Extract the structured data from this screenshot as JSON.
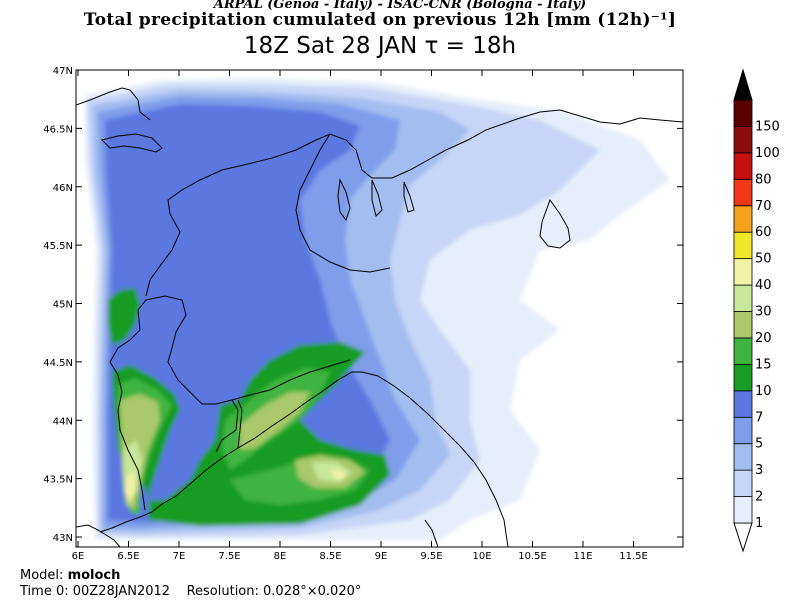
{
  "header": {
    "line1": "ARPAL (Genoa - Italy)   -   ISAC-CNR (Bologna - Italy)",
    "line2": "Total precipitation cumulated on previous 12h [mm (12h)⁻¹]",
    "line3": "18Z Sat 28 JAN   τ = 18h"
  },
  "map": {
    "lat_labels": [
      "47N",
      "46.5N",
      "46N",
      "45.5N",
      "45N",
      "44.5N",
      "44N",
      "43.5N",
      "43N"
    ],
    "lon_labels": [
      "6E",
      "6.5E",
      "7E",
      "7.5E",
      "8E",
      "8.5E",
      "9E",
      "9.5E",
      "10E",
      "10.5E",
      "11E",
      "11.5E"
    ]
  },
  "colorbar": {
    "levels": [
      "1",
      "2",
      "3",
      "5",
      "7",
      "10",
      "15",
      "20",
      "30",
      "40",
      "50",
      "60",
      "70",
      "80",
      "100",
      "150"
    ],
    "colors": [
      "#e6eefb",
      "#c6d6f6",
      "#a3bdf0",
      "#7f9dea",
      "#5a78e0",
      "#189c24",
      "#3fb43f",
      "#a9c96a",
      "#c7e89b",
      "#f2f2a6",
      "#f0e62a",
      "#f3a21b",
      "#ef3a14",
      "#c5100f",
      "#8c0d0d",
      "#5a0000"
    ],
    "top_color": "#000000",
    "bottom_color": "#ffffff"
  },
  "footer": {
    "model_label": "Model:",
    "model_value": "moloch",
    "time_label": "Time 0:",
    "time_value": "00Z28JAN2012",
    "res_label": "Resolution:",
    "res_value": "0.028°×0.020°"
  }
}
